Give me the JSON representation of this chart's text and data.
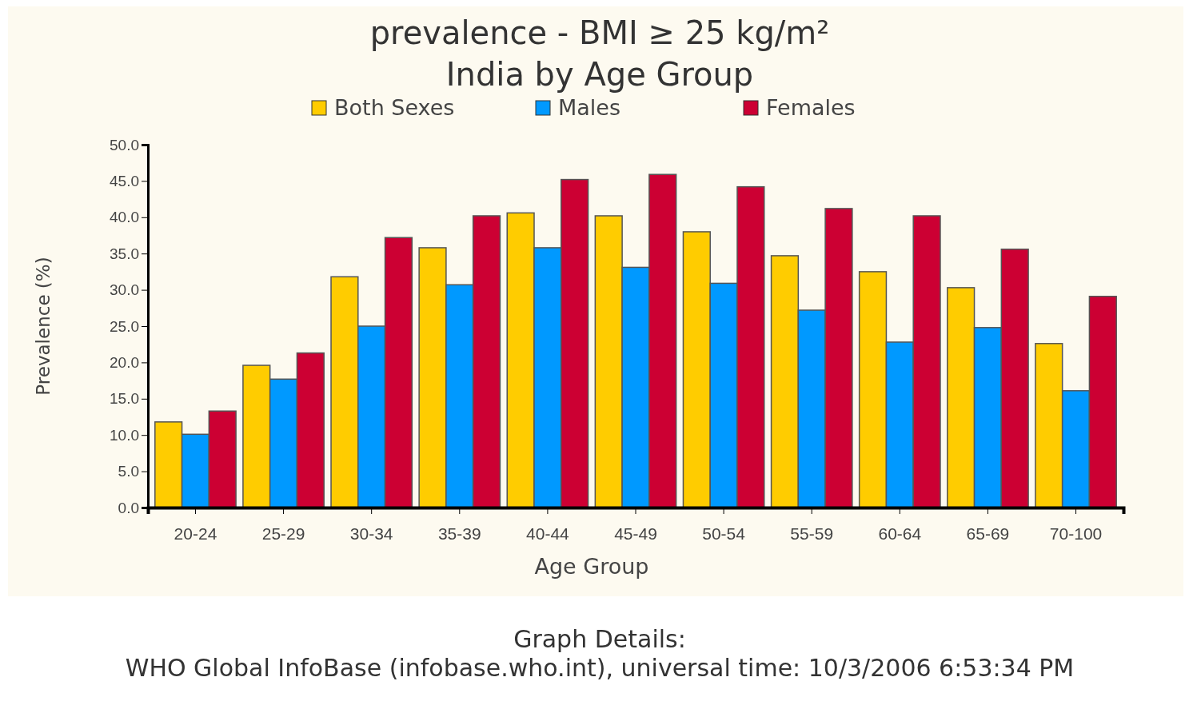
{
  "chart_data": {
    "type": "bar",
    "title": "prevalence - BMI ≥ 25 kg/m²",
    "subtitle": "India by Age Group",
    "xlabel": "Age Group",
    "ylabel": "Prevalence (%)",
    "categories": [
      "20-24",
      "25-29",
      "30-34",
      "35-39",
      "40-44",
      "45-49",
      "50-54",
      "55-59",
      "60-64",
      "65-69",
      "70-100"
    ],
    "series": [
      {
        "name": "Both Sexes",
        "color": "#ffcc00",
        "values": [
          11.8,
          19.6,
          31.8,
          35.8,
          40.6,
          40.2,
          38.0,
          34.7,
          32.5,
          30.3,
          22.6
        ]
      },
      {
        "name": "Males",
        "color": "#0099ff",
        "values": [
          10.1,
          17.7,
          25.0,
          30.7,
          35.8,
          33.1,
          30.9,
          27.2,
          22.8,
          24.8,
          16.1
        ]
      },
      {
        "name": "Females",
        "color": "#cc0033",
        "values": [
          13.3,
          21.3,
          37.2,
          40.2,
          45.2,
          45.9,
          44.2,
          41.2,
          40.2,
          35.6,
          29.1
        ]
      }
    ],
    "ylim": [
      0,
      50
    ],
    "yticks": [
      {
        "value": 0,
        "label": "0.0"
      },
      {
        "value": 5,
        "label": "5.0"
      },
      {
        "value": 10,
        "label": "10.0"
      },
      {
        "value": 15,
        "label": "15.0"
      },
      {
        "value": 20,
        "label": "20.0"
      },
      {
        "value": 25,
        "label": "25.0"
      },
      {
        "value": 30,
        "label": "30.0"
      },
      {
        "value": 35,
        "label": "35.0"
      },
      {
        "value": 40,
        "label": "40.0"
      },
      {
        "value": 45,
        "label": "45.0"
      },
      {
        "value": 50,
        "label": "50.0"
      }
    ],
    "grid": false,
    "legend": "top",
    "annotations": [
      "Graph Details:",
      "WHO Global InfoBase (infobase.who.int), universal time: 10/3/2006 6:53:34 PM"
    ]
  }
}
